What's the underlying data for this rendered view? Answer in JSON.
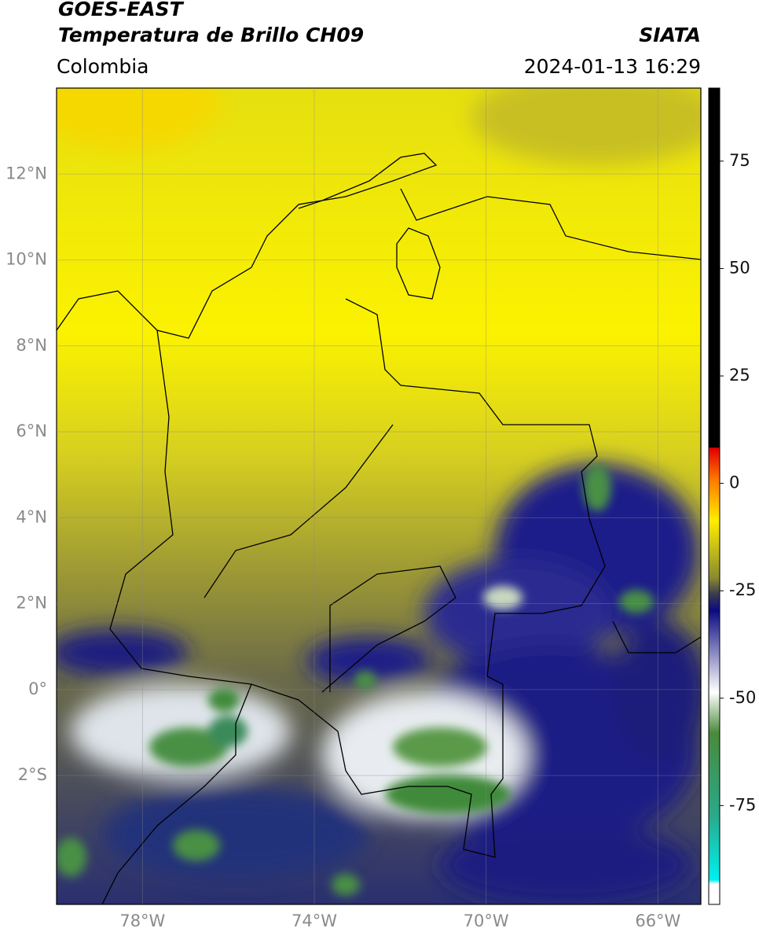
{
  "header": {
    "title": "GOES-EAST",
    "subtitle": "Temperatura de Brillo CH09",
    "region": "Colombia",
    "source": "SIATA",
    "datetime": "2024-01-13 16:29"
  },
  "map": {
    "xlim": [
      -80,
      -65
    ],
    "ylim": [
      -5,
      14
    ],
    "xticks": [
      {
        "value": -78,
        "label": "78°W"
      },
      {
        "value": -74,
        "label": "74°W"
      },
      {
        "value": -70,
        "label": "70°W"
      },
      {
        "value": -66,
        "label": "66°W"
      }
    ],
    "yticks": [
      {
        "value": 12,
        "label": "12°N"
      },
      {
        "value": 10,
        "label": "10°N"
      },
      {
        "value": 8,
        "label": "8°N"
      },
      {
        "value": 6,
        "label": "6°N"
      },
      {
        "value": 4,
        "label": "4°N"
      },
      {
        "value": 2,
        "label": "2°N"
      },
      {
        "value": 0,
        "label": "0°"
      },
      {
        "value": -2,
        "label": "2°S"
      }
    ],
    "grid": true
  },
  "colorbar": {
    "lim": [
      -98,
      92
    ],
    "ticks": [
      75,
      50,
      25,
      0,
      -25,
      -50,
      -75
    ]
  }
}
